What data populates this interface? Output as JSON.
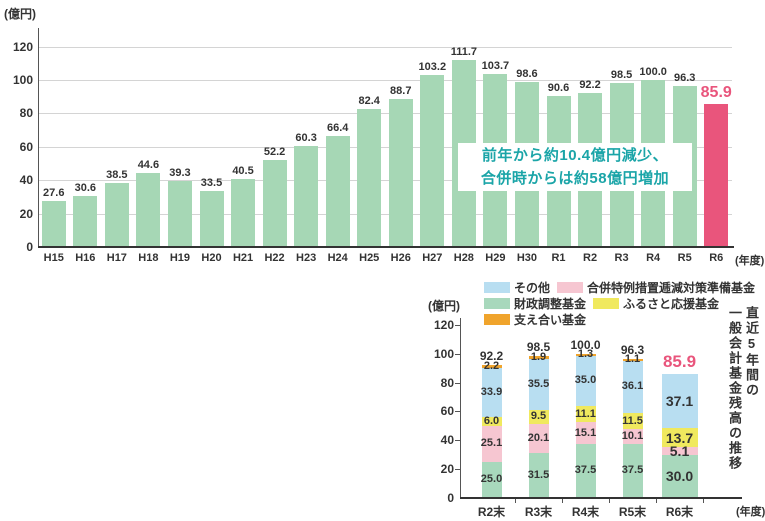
{
  "chart_data": [
    {
      "type": "bar",
      "unit": "(億円)",
      "xlabel": "(年度)",
      "ylabel": "億円",
      "ylim": [
        0,
        120
      ],
      "yticks": [
        0,
        20,
        40,
        60,
        80,
        100,
        120
      ],
      "grid": true,
      "categories": [
        "H15",
        "H16",
        "H17",
        "H18",
        "H19",
        "H20",
        "H21",
        "H22",
        "H23",
        "H24",
        "H25",
        "H26",
        "H27",
        "H28",
        "H29",
        "H30",
        "R1",
        "R2",
        "R3",
        "R4",
        "R5",
        "R6"
      ],
      "values": [
        27.6,
        30.6,
        38.5,
        44.6,
        39.3,
        33.5,
        40.5,
        52.2,
        60.3,
        66.4,
        82.4,
        88.7,
        103.2,
        111.7,
        103.7,
        98.6,
        90.6,
        92.2,
        98.5,
        100.0,
        96.3,
        85.9
      ],
      "value_labels": [
        "27.6",
        "30.6",
        "38.5",
        "44.6",
        "39.3",
        "33.5",
        "40.5",
        "52.2",
        "60.3",
        "66.4",
        "82.4",
        "88.7",
        "103.2",
        "111.7",
        "103.7",
        "98.6",
        "90.6",
        "92.2",
        "98.5",
        "100.0",
        "96.3",
        "85.9"
      ],
      "bar_color": "#a6d7b5",
      "highlight_category": "R6",
      "highlight_color": "#e9557c",
      "annotation": {
        "line1": "前年から約10.4億円減少、",
        "line2": "合併時からは約58億円増加",
        "color": "#1ba5a8"
      }
    },
    {
      "type": "stacked-bar",
      "title_line1": "直近5年間の",
      "title_line2": "一般会計基金残高の推移",
      "unit": "(億円)",
      "xlabel": "(年度)",
      "ylim": [
        0,
        120
      ],
      "yticks": [
        0,
        20,
        40,
        60,
        80,
        100,
        120
      ],
      "grid": false,
      "legend_position": "top",
      "categories": [
        "R2末",
        "R3末",
        "R4末",
        "R5末",
        "R6末"
      ],
      "totals": [
        92.2,
        98.5,
        100.0,
        96.3,
        85.9
      ],
      "total_labels": [
        "92.2",
        "98.5",
        "100.0",
        "96.3",
        "85.9"
      ],
      "highlight_category": "R6末",
      "highlight_color": "#e9557c",
      "series": [
        {
          "name": "財政調整基金",
          "color": "#a8d8bc",
          "values": [
            25.0,
            31.5,
            37.5,
            37.5,
            30.0
          ],
          "labels": [
            "25.0",
            "31.5",
            "37.5",
            "37.5",
            "30.0"
          ]
        },
        {
          "name": "合併特例措置逓減対策準備基金",
          "color": "#f6c6d1",
          "values": [
            25.1,
            20.1,
            15.1,
            10.1,
            5.1
          ],
          "labels": [
            "25.1",
            "20.1",
            "15.1",
            "10.1",
            "5.1"
          ]
        },
        {
          "name": "ふるさと応援基金",
          "color": "#f0e95e",
          "values": [
            6.0,
            9.5,
            11.1,
            11.5,
            13.7
          ],
          "labels": [
            "6.0",
            "9.5",
            "11.1",
            "11.5",
            "13.7"
          ]
        },
        {
          "name": "その他",
          "color": "#b8def1",
          "values": [
            33.9,
            35.5,
            35.0,
            36.1,
            37.1
          ],
          "labels": [
            "33.9",
            "35.5",
            "35.0",
            "36.1",
            "37.1"
          ]
        },
        {
          "name": "支え合い基金",
          "color": "#f0a42c",
          "values": [
            2.2,
            1.9,
            1.3,
            1.1,
            0
          ],
          "labels": [
            "2.2",
            "1.9",
            "1.3",
            "1.1",
            ""
          ]
        }
      ],
      "legend_rows": [
        [
          3,
          1
        ],
        [
          0,
          2
        ],
        [
          4
        ]
      ]
    }
  ]
}
